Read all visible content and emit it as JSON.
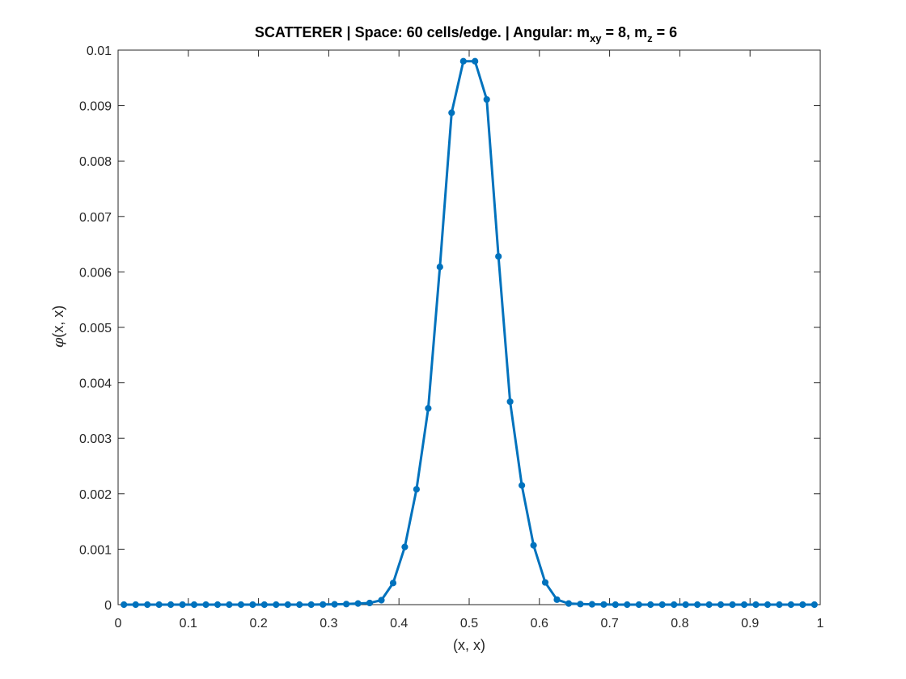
{
  "chart_data": {
    "type": "line",
    "title": {
      "part1": "SCATTERER | Space: 60 cells/edge. | Angular: m",
      "sub1": "xy",
      "part2": " = 8, m",
      "sub2": "z",
      "part3": " = 6"
    },
    "xlabel": "(x, x)",
    "ylabel_symbol": "φ",
    "ylabel_rest": "(x, x)",
    "xlim": [
      0,
      1
    ],
    "ylim": [
      0,
      0.01
    ],
    "x_ticks": [
      "0",
      "0.1",
      "0.2",
      "0.3",
      "0.4",
      "0.5",
      "0.6",
      "0.7",
      "0.8",
      "0.9",
      "1"
    ],
    "y_ticks": [
      "0",
      "0.001",
      "0.002",
      "0.003",
      "0.004",
      "0.005",
      "0.006",
      "0.007",
      "0.008",
      "0.009",
      "0.01"
    ],
    "grid": false,
    "series": [
      {
        "color": "#0072BD",
        "marker": "dot",
        "x": [
          0.0083,
          0.025,
          0.0417,
          0.0583,
          0.075,
          0.0917,
          0.1083,
          0.125,
          0.1417,
          0.1583,
          0.175,
          0.1917,
          0.2083,
          0.225,
          0.2417,
          0.2583,
          0.275,
          0.2917,
          0.3083,
          0.325,
          0.3417,
          0.3583,
          0.375,
          0.3917,
          0.4083,
          0.425,
          0.4417,
          0.4583,
          0.475,
          0.4917,
          0.5083,
          0.525,
          0.5417,
          0.5583,
          0.575,
          0.5917,
          0.6083,
          0.625,
          0.6417,
          0.6583,
          0.675,
          0.6917,
          0.7083,
          0.725,
          0.7417,
          0.7583,
          0.775,
          0.7917,
          0.8083,
          0.825,
          0.8417,
          0.8583,
          0.875,
          0.8917,
          0.9083,
          0.925,
          0.9417,
          0.9583,
          0.975,
          0.9917
        ],
        "y": [
          0,
          0,
          0,
          0,
          0,
          0,
          0,
          0,
          0,
          0,
          0,
          0,
          0,
          0,
          0,
          0,
          0,
          3e-06,
          6e-06,
          1e-05,
          2e-05,
          3e-05,
          8e-05,
          0.00039,
          0.00104,
          0.00208,
          0.00354,
          0.00609,
          0.00887,
          0.0098,
          0.0098,
          0.00911,
          0.00628,
          0.00366,
          0.00215,
          0.00107,
          0.0004,
          9e-05,
          2e-05,
          1e-05,
          5e-06,
          3e-06,
          0,
          0,
          0,
          0,
          0,
          0,
          0,
          0,
          0,
          0,
          0,
          0,
          0,
          0,
          0,
          0,
          0,
          0
        ]
      }
    ]
  }
}
